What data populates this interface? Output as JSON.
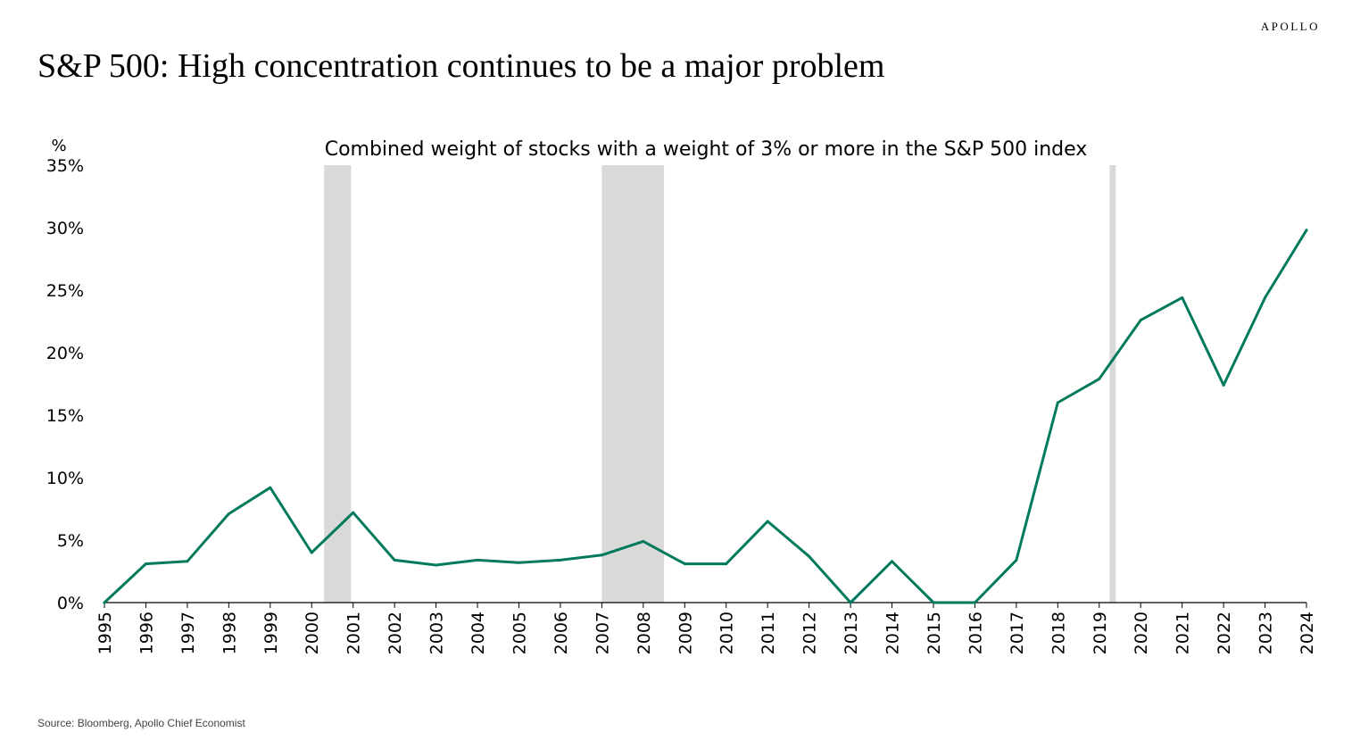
{
  "brand": "APOLLO",
  "title": "S&P 500: High concentration continues to be a major problem",
  "source": "Source: Bloomberg, Apollo Chief Economist",
  "colors": {
    "line": "#007a5c",
    "recession": "#d9d9d9",
    "axis": "#000000"
  },
  "chart_data": {
    "type": "line",
    "title": "Combined weight of stocks with a weight of 3% or more in the S&P 500 index",
    "ylabel": "%",
    "xlabel": "",
    "ylim": [
      0,
      35
    ],
    "yticks": [
      "0%",
      "5%",
      "10%",
      "15%",
      "20%",
      "25%",
      "30%",
      "35%"
    ],
    "ytick_values": [
      0,
      5,
      10,
      15,
      20,
      25,
      30,
      35
    ],
    "grid": false,
    "legend": "none",
    "x": [
      "1995",
      "1996",
      "1997",
      "1998",
      "1999",
      "2000",
      "2001",
      "2002",
      "2003",
      "2004",
      "2005",
      "2006",
      "2007",
      "2008",
      "2009",
      "2010",
      "2011",
      "2012",
      "2013",
      "2014",
      "2015",
      "2016",
      "2017",
      "2018",
      "2019",
      "2020",
      "2021",
      "2022",
      "2023",
      "2024"
    ],
    "series": [
      {
        "values": [
          0,
          3.1,
          3.3,
          7.1,
          9.2,
          4.0,
          7.2,
          3.4,
          3.0,
          3.4,
          3.2,
          3.4,
          3.8,
          4.9,
          3.1,
          3.1,
          6.5,
          3.7,
          0,
          3.3,
          0,
          0,
          3.4,
          16.0,
          17.9,
          22.6,
          24.4,
          17.4,
          24.4,
          29.8
        ]
      }
    ],
    "recessions": [
      {
        "start": 2000.3,
        "end": 2000.95
      },
      {
        "start": 2007.0,
        "end": 2008.5
      },
      {
        "start": 2019.25,
        "end": 2019.4
      }
    ]
  }
}
